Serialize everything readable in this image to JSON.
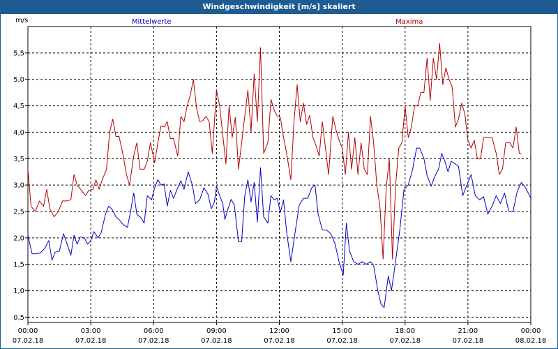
{
  "window": {
    "title": "Windgeschwindigkeit [m/s] skaliert"
  },
  "colors": {
    "title_bar": "#1d5b92",
    "mittelwerte": "#0000c8",
    "maxima": "#b40000",
    "grid": "#000000"
  },
  "chart_data": {
    "type": "line",
    "title": "Windgeschwindigkeit [m/s] skaliert",
    "ylabel": "m/s",
    "ylim": [
      0.4,
      6.0
    ],
    "yticks": [
      0.5,
      1.0,
      1.5,
      2.0,
      2.5,
      3.0,
      3.5,
      4.0,
      4.5,
      5.0,
      5.5
    ],
    "ytick_labels": [
      "0,5",
      "1,0",
      "1,5",
      "2,0",
      "2,5",
      "3,0",
      "3,5",
      "4,0",
      "4,5",
      "5,0",
      "5,5"
    ],
    "xlim": [
      0,
      24
    ],
    "xticks": [
      {
        "x": 0,
        "time": "00:00",
        "date": "07.02.18"
      },
      {
        "x": 3,
        "time": "03:00",
        "date": "07.02.18"
      },
      {
        "x": 6,
        "time": "06:00",
        "date": "07.02.18"
      },
      {
        "x": 9,
        "time": "09:00",
        "date": "07.02.18"
      },
      {
        "x": 12,
        "time": "12:00",
        "date": "07.02.18"
      },
      {
        "x": 15,
        "time": "15:00",
        "date": "07.02.18"
      },
      {
        "x": 18,
        "time": "18:00",
        "date": "07.02.18"
      },
      {
        "x": 21,
        "time": "21:00",
        "date": "07.02.18"
      },
      {
        "x": 24,
        "time": "00:00",
        "date": "08.02.18"
      }
    ],
    "grid": true,
    "series": [
      {
        "name": "Mittelwerte",
        "color": "#0000c8",
        "points": [
          [
            0,
            2.05
          ],
          [
            0.2,
            1.7
          ],
          [
            0.4,
            1.7
          ],
          [
            0.6,
            1.72
          ],
          [
            0.8,
            1.8
          ],
          [
            1.0,
            1.95
          ],
          [
            1.15,
            1.58
          ],
          [
            1.3,
            1.73
          ],
          [
            1.5,
            1.75
          ],
          [
            1.7,
            2.08
          ],
          [
            1.9,
            1.85
          ],
          [
            2.05,
            1.67
          ],
          [
            2.2,
            2.05
          ],
          [
            2.35,
            1.88
          ],
          [
            2.5,
            2.02
          ],
          [
            2.7,
            2.0
          ],
          [
            2.85,
            1.88
          ],
          [
            3.0,
            1.95
          ],
          [
            3.15,
            2.12
          ],
          [
            3.35,
            2.0
          ],
          [
            3.5,
            2.1
          ],
          [
            3.7,
            2.45
          ],
          [
            3.85,
            2.6
          ],
          [
            4.0,
            2.55
          ],
          [
            4.2,
            2.4
          ],
          [
            4.35,
            2.35
          ],
          [
            4.55,
            2.25
          ],
          [
            4.75,
            2.2
          ],
          [
            4.9,
            2.5
          ],
          [
            5.05,
            2.85
          ],
          [
            5.2,
            2.45
          ],
          [
            5.4,
            2.38
          ],
          [
            5.55,
            2.28
          ],
          [
            5.7,
            2.8
          ],
          [
            5.9,
            2.72
          ],
          [
            6.05,
            2.95
          ],
          [
            6.2,
            3.1
          ],
          [
            6.35,
            3.0
          ],
          [
            6.5,
            3.02
          ],
          [
            6.65,
            2.6
          ],
          [
            6.8,
            2.9
          ],
          [
            6.95,
            2.75
          ],
          [
            7.15,
            2.95
          ],
          [
            7.3,
            3.08
          ],
          [
            7.45,
            2.92
          ],
          [
            7.65,
            3.25
          ],
          [
            7.85,
            3.0
          ],
          [
            8.0,
            2.65
          ],
          [
            8.2,
            2.72
          ],
          [
            8.4,
            2.95
          ],
          [
            8.6,
            2.82
          ],
          [
            8.75,
            2.55
          ],
          [
            8.9,
            2.68
          ],
          [
            9.0,
            2.98
          ],
          [
            9.15,
            2.8
          ],
          [
            9.3,
            2.65
          ],
          [
            9.4,
            2.35
          ],
          [
            9.55,
            2.55
          ],
          [
            9.7,
            2.73
          ],
          [
            9.85,
            2.63
          ],
          [
            10.05,
            1.93
          ],
          [
            10.2,
            1.93
          ],
          [
            10.35,
            2.8
          ],
          [
            10.5,
            3.1
          ],
          [
            10.65,
            2.68
          ],
          [
            10.8,
            3.05
          ],
          [
            10.95,
            2.3
          ],
          [
            11.1,
            3.33
          ],
          [
            11.25,
            2.4
          ],
          [
            11.45,
            2.28
          ],
          [
            11.6,
            2.8
          ],
          [
            11.75,
            2.72
          ],
          [
            11.9,
            2.75
          ],
          [
            12.05,
            2.48
          ],
          [
            12.2,
            2.72
          ],
          [
            12.35,
            2.1
          ],
          [
            12.55,
            1.55
          ],
          [
            12.75,
            2.1
          ],
          [
            12.95,
            2.62
          ],
          [
            13.15,
            2.75
          ],
          [
            13.35,
            2.75
          ],
          [
            13.55,
            2.95
          ],
          [
            13.7,
            3.0
          ],
          [
            13.85,
            2.45
          ],
          [
            14.05,
            2.15
          ],
          [
            14.25,
            2.15
          ],
          [
            14.45,
            2.08
          ],
          [
            14.65,
            1.9
          ],
          [
            14.85,
            1.55
          ],
          [
            15.05,
            1.3
          ],
          [
            15.2,
            2.28
          ],
          [
            15.35,
            1.75
          ],
          [
            15.55,
            1.55
          ],
          [
            15.75,
            1.5
          ],
          [
            15.95,
            1.55
          ],
          [
            16.15,
            1.5
          ],
          [
            16.35,
            1.55
          ],
          [
            16.5,
            1.48
          ],
          [
            16.7,
            1.0
          ],
          [
            16.85,
            0.75
          ],
          [
            17.0,
            0.68
          ],
          [
            17.2,
            1.28
          ],
          [
            17.35,
            1.0
          ],
          [
            17.5,
            1.42
          ],
          [
            17.75,
            2.15
          ],
          [
            17.95,
            2.92
          ],
          [
            18.15,
            3.0
          ],
          [
            18.35,
            3.28
          ],
          [
            18.55,
            3.7
          ],
          [
            18.7,
            3.7
          ],
          [
            18.9,
            3.5
          ],
          [
            19.05,
            3.18
          ],
          [
            19.25,
            2.98
          ],
          [
            19.4,
            3.15
          ],
          [
            19.6,
            3.3
          ],
          [
            19.75,
            3.6
          ],
          [
            19.9,
            3.45
          ],
          [
            20.05,
            3.25
          ],
          [
            20.2,
            3.45
          ],
          [
            20.4,
            3.4
          ],
          [
            20.55,
            3.35
          ],
          [
            20.75,
            2.8
          ],
          [
            20.95,
            3.0
          ],
          [
            21.15,
            3.2
          ],
          [
            21.35,
            2.8
          ],
          [
            21.55,
            2.72
          ],
          [
            21.75,
            2.78
          ],
          [
            21.95,
            2.45
          ],
          [
            22.15,
            2.6
          ],
          [
            22.35,
            2.8
          ],
          [
            22.55,
            2.65
          ],
          [
            22.75,
            2.85
          ],
          [
            22.95,
            2.5
          ],
          [
            23.15,
            2.5
          ],
          [
            23.35,
            2.88
          ],
          [
            23.55,
            3.05
          ],
          [
            23.75,
            2.95
          ],
          [
            24.0,
            2.75
          ]
        ]
      },
      {
        "name": "Maxima",
        "color": "#b40000",
        "points": [
          [
            0,
            3.3
          ],
          [
            0.15,
            2.6
          ],
          [
            0.35,
            2.5
          ],
          [
            0.55,
            2.7
          ],
          [
            0.75,
            2.6
          ],
          [
            0.9,
            2.92
          ],
          [
            1.05,
            2.55
          ],
          [
            1.25,
            2.4
          ],
          [
            1.45,
            2.5
          ],
          [
            1.65,
            2.7
          ],
          [
            1.85,
            2.7
          ],
          [
            2.05,
            2.72
          ],
          [
            2.2,
            3.2
          ],
          [
            2.35,
            3.0
          ],
          [
            2.55,
            2.9
          ],
          [
            2.75,
            2.8
          ],
          [
            2.9,
            2.9
          ],
          [
            3.1,
            2.92
          ],
          [
            3.25,
            3.1
          ],
          [
            3.4,
            2.92
          ],
          [
            3.55,
            3.1
          ],
          [
            3.75,
            3.3
          ],
          [
            3.9,
            4.0
          ],
          [
            4.05,
            4.25
          ],
          [
            4.2,
            3.92
          ],
          [
            4.35,
            3.92
          ],
          [
            4.55,
            3.55
          ],
          [
            4.7,
            3.2
          ],
          [
            4.85,
            3.0
          ],
          [
            5.05,
            3.55
          ],
          [
            5.2,
            3.8
          ],
          [
            5.35,
            3.3
          ],
          [
            5.55,
            3.3
          ],
          [
            5.7,
            3.45
          ],
          [
            5.85,
            3.8
          ],
          [
            6.05,
            3.42
          ],
          [
            6.2,
            3.8
          ],
          [
            6.35,
            4.12
          ],
          [
            6.5,
            4.1
          ],
          [
            6.65,
            4.2
          ],
          [
            6.8,
            3.88
          ],
          [
            6.95,
            3.88
          ],
          [
            7.15,
            3.55
          ],
          [
            7.3,
            4.3
          ],
          [
            7.45,
            4.2
          ],
          [
            7.6,
            4.5
          ],
          [
            7.75,
            4.7
          ],
          [
            7.9,
            5.0
          ],
          [
            8.05,
            4.45
          ],
          [
            8.2,
            4.2
          ],
          [
            8.35,
            4.22
          ],
          [
            8.5,
            4.3
          ],
          [
            8.65,
            4.2
          ],
          [
            8.8,
            3.6
          ],
          [
            9.0,
            4.8
          ],
          [
            9.15,
            4.5
          ],
          [
            9.3,
            3.95
          ],
          [
            9.45,
            3.4
          ],
          [
            9.6,
            4.5
          ],
          [
            9.75,
            3.9
          ],
          [
            9.9,
            4.28
          ],
          [
            10.05,
            3.3
          ],
          [
            10.2,
            3.8
          ],
          [
            10.35,
            4.3
          ],
          [
            10.5,
            4.8
          ],
          [
            10.65,
            4.0
          ],
          [
            10.8,
            5.1
          ],
          [
            10.95,
            4.2
          ],
          [
            11.1,
            5.6
          ],
          [
            11.25,
            3.6
          ],
          [
            11.45,
            3.8
          ],
          [
            11.6,
            4.62
          ],
          [
            11.75,
            4.42
          ],
          [
            11.9,
            4.3
          ],
          [
            12.05,
            4.28
          ],
          [
            12.2,
            3.9
          ],
          [
            12.35,
            3.6
          ],
          [
            12.55,
            3.1
          ],
          [
            12.7,
            4.2
          ],
          [
            12.85,
            4.9
          ],
          [
            13.0,
            4.2
          ],
          [
            13.15,
            4.55
          ],
          [
            13.3,
            4.15
          ],
          [
            13.45,
            4.32
          ],
          [
            13.6,
            3.9
          ],
          [
            13.75,
            3.75
          ],
          [
            13.9,
            3.55
          ],
          [
            14.05,
            4.2
          ],
          [
            14.2,
            3.7
          ],
          [
            14.35,
            3.2
          ],
          [
            14.55,
            4.3
          ],
          [
            14.7,
            4.05
          ],
          [
            14.85,
            3.85
          ],
          [
            15.0,
            3.7
          ],
          [
            15.15,
            3.2
          ],
          [
            15.3,
            4.0
          ],
          [
            15.45,
            3.3
          ],
          [
            15.6,
            3.9
          ],
          [
            15.75,
            3.2
          ],
          [
            15.9,
            3.8
          ],
          [
            16.05,
            3.3
          ],
          [
            16.2,
            3.2
          ],
          [
            16.35,
            4.3
          ],
          [
            16.5,
            3.8
          ],
          [
            16.65,
            3.0
          ],
          [
            16.8,
            2.6
          ],
          [
            16.95,
            1.6
          ],
          [
            17.1,
            2.95
          ],
          [
            17.25,
            3.5
          ],
          [
            17.4,
            1.6
          ],
          [
            17.55,
            3.0
          ],
          [
            17.7,
            3.7
          ],
          [
            17.85,
            3.8
          ],
          [
            18.0,
            4.5
          ],
          [
            18.15,
            3.9
          ],
          [
            18.3,
            4.1
          ],
          [
            18.45,
            4.5
          ],
          [
            18.6,
            4.5
          ],
          [
            18.75,
            4.75
          ],
          [
            18.9,
            4.75
          ],
          [
            19.05,
            5.4
          ],
          [
            19.2,
            4.6
          ],
          [
            19.35,
            5.4
          ],
          [
            19.5,
            5.0
          ],
          [
            19.65,
            5.68
          ],
          [
            19.8,
            4.9
          ],
          [
            19.95,
            5.22
          ],
          [
            20.1,
            5.0
          ],
          [
            20.25,
            4.85
          ],
          [
            20.4,
            4.1
          ],
          [
            20.55,
            4.25
          ],
          [
            20.7,
            4.55
          ],
          [
            20.85,
            4.35
          ],
          [
            21.0,
            3.85
          ],
          [
            21.15,
            3.7
          ],
          [
            21.3,
            3.85
          ],
          [
            21.45,
            3.5
          ],
          [
            21.6,
            3.5
          ],
          [
            21.75,
            3.9
          ],
          [
            21.95,
            3.9
          ],
          [
            22.15,
            3.9
          ],
          [
            22.35,
            3.6
          ],
          [
            22.5,
            3.2
          ],
          [
            22.65,
            3.3
          ],
          [
            22.8,
            3.8
          ],
          [
            23.0,
            3.8
          ],
          [
            23.15,
            3.7
          ],
          [
            23.3,
            4.1
          ],
          [
            23.45,
            3.6
          ],
          [
            23.55,
            3.6
          ]
        ]
      }
    ]
  }
}
